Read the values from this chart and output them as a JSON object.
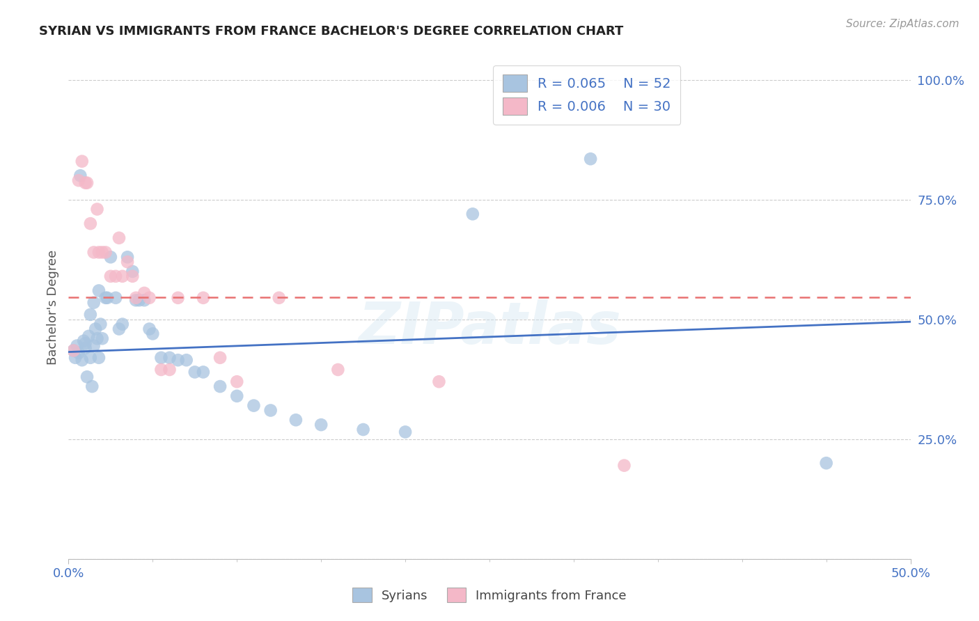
{
  "title": "SYRIAN VS IMMIGRANTS FROM FRANCE BACHELOR'S DEGREE CORRELATION CHART",
  "source_text": "Source: ZipAtlas.com",
  "ylabel": "Bachelor's Degree",
  "xlim": [
    0.0,
    0.5
  ],
  "ylim": [
    0.0,
    1.05
  ],
  "yticks": [
    0.0,
    0.25,
    0.5,
    0.75,
    1.0
  ],
  "ytick_labels": [
    "",
    "25.0%",
    "50.0%",
    "75.0%",
    "100.0%"
  ],
  "xtick_positions": [
    0.0,
    0.5
  ],
  "xtick_labels": [
    "0.0%",
    "50.0%"
  ],
  "legend_line1": "R = 0.065    N = 52",
  "legend_line2": "R = 0.006    N = 30",
  "blue_scatter_color": "#a8c4e0",
  "pink_scatter_color": "#f4b8c8",
  "blue_line_color": "#4472C4",
  "pink_line_color": "#e87070",
  "legend_text_color": "#4472C4",
  "grid_color": "#cccccc",
  "background_color": "#ffffff",
  "axis_color": "#bbbbbb",
  "title_color": "#222222",
  "source_color": "#999999",
  "ylabel_color": "#555555",
  "xtick_color": "#4472C4",
  "ytick_color": "#4472C4",
  "syrians_x": [
    0.003,
    0.004,
    0.005,
    0.006,
    0.007,
    0.008,
    0.009,
    0.01,
    0.01,
    0.011,
    0.012,
    0.013,
    0.013,
    0.014,
    0.015,
    0.015,
    0.016,
    0.017,
    0.018,
    0.018,
    0.019,
    0.02,
    0.022,
    0.023,
    0.025,
    0.028,
    0.03,
    0.032,
    0.035,
    0.038,
    0.04,
    0.042,
    0.045,
    0.048,
    0.05,
    0.055,
    0.06,
    0.065,
    0.07,
    0.075,
    0.08,
    0.09,
    0.1,
    0.11,
    0.12,
    0.135,
    0.15,
    0.175,
    0.2,
    0.24,
    0.31,
    0.45
  ],
  "syrians_y": [
    0.435,
    0.42,
    0.445,
    0.43,
    0.8,
    0.415,
    0.455,
    0.44,
    0.45,
    0.38,
    0.465,
    0.42,
    0.51,
    0.36,
    0.445,
    0.535,
    0.48,
    0.46,
    0.42,
    0.56,
    0.49,
    0.46,
    0.545,
    0.545,
    0.63,
    0.545,
    0.48,
    0.49,
    0.63,
    0.6,
    0.54,
    0.54,
    0.54,
    0.48,
    0.47,
    0.42,
    0.42,
    0.415,
    0.415,
    0.39,
    0.39,
    0.36,
    0.34,
    0.32,
    0.31,
    0.29,
    0.28,
    0.27,
    0.265,
    0.72,
    0.835,
    0.2
  ],
  "france_x": [
    0.003,
    0.006,
    0.008,
    0.01,
    0.011,
    0.013,
    0.015,
    0.017,
    0.018,
    0.02,
    0.022,
    0.025,
    0.028,
    0.03,
    0.032,
    0.035,
    0.038,
    0.04,
    0.045,
    0.048,
    0.055,
    0.06,
    0.065,
    0.08,
    0.09,
    0.1,
    0.125,
    0.16,
    0.22,
    0.33
  ],
  "france_y": [
    0.435,
    0.79,
    0.83,
    0.785,
    0.785,
    0.7,
    0.64,
    0.73,
    0.64,
    0.64,
    0.64,
    0.59,
    0.59,
    0.67,
    0.59,
    0.62,
    0.59,
    0.545,
    0.555,
    0.545,
    0.395,
    0.395,
    0.545,
    0.545,
    0.42,
    0.37,
    0.545,
    0.395,
    0.37,
    0.195
  ],
  "blue_trend_x": [
    0.0,
    0.5
  ],
  "blue_trend_y": [
    0.432,
    0.495
  ],
  "pink_trend_x": [
    0.0,
    0.5
  ],
  "pink_trend_y": [
    0.546,
    0.546
  ],
  "watermark": "ZIPatlas",
  "bottom_legend_labels": [
    "Syrians",
    "Immigrants from France"
  ]
}
